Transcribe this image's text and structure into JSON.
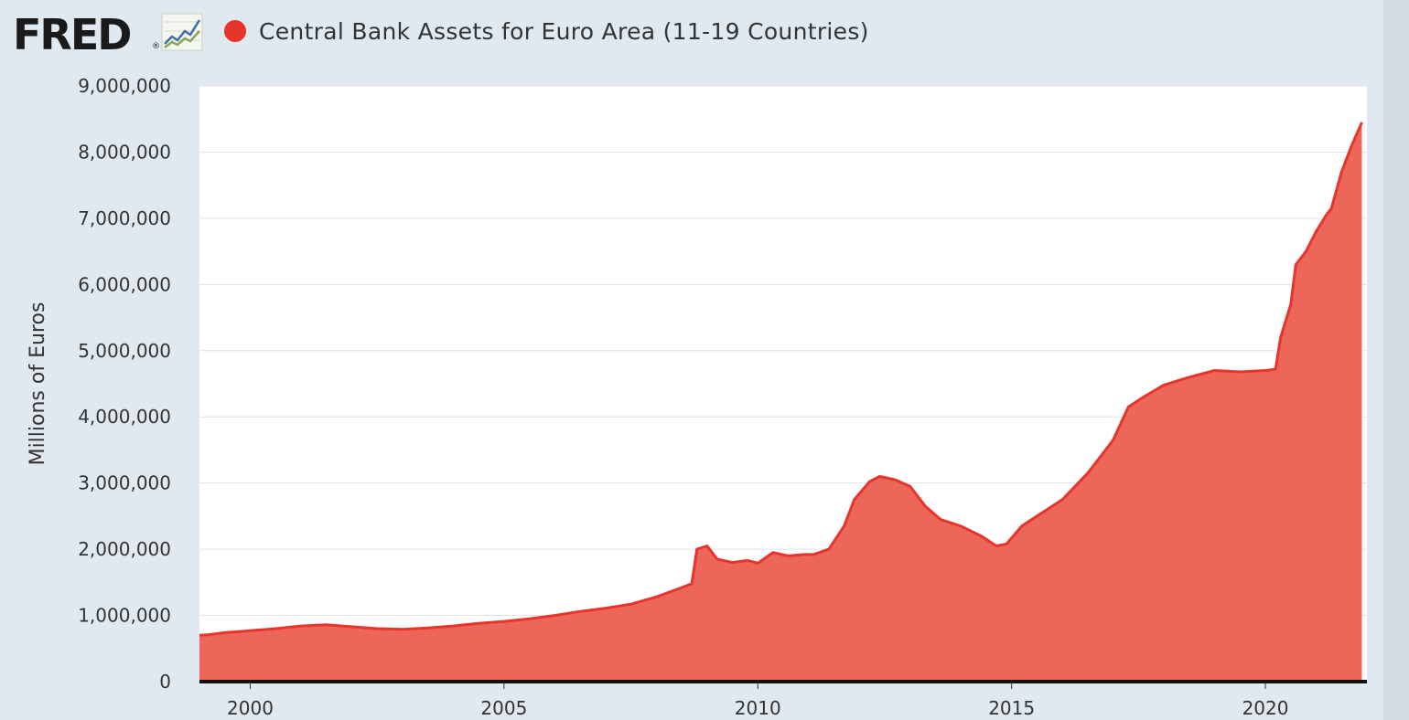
{
  "header": {
    "logo_text": "FRED",
    "logo_reg": "®",
    "logo_icon": "line-chart-icon",
    "title": "Central Bank Assets for Euro Area (11-19 Countries)"
  },
  "colors": {
    "series_line": "#e8342a",
    "series_fill": "#ec6659",
    "plot_background": "#ffffff",
    "page_background": "#e1e9f0",
    "grid": "#dfe3e8"
  },
  "chart_data": {
    "type": "area",
    "title": "Central Bank Assets for Euro Area (11-19 Countries)",
    "ylabel": "Millions of Euros",
    "xlabel": "",
    "xlim": [
      1999.0,
      2022.0
    ],
    "ylim": [
      0,
      9000000
    ],
    "grid": true,
    "legend": "none",
    "y_ticks": [
      0,
      1000000,
      2000000,
      3000000,
      4000000,
      5000000,
      6000000,
      7000000,
      8000000,
      9000000
    ],
    "y_tick_labels": [
      "0",
      "1,000,000",
      "2,000,000",
      "3,000,000",
      "4,000,000",
      "5,000,000",
      "6,000,000",
      "7,000,000",
      "8,000,000",
      "9,000,000"
    ],
    "x_ticks": [
      2000,
      2005,
      2010,
      2015,
      2020
    ],
    "x_tick_labels": [
      "2000",
      "2005",
      "2010",
      "2015",
      "2020"
    ],
    "series": [
      {
        "x": [
          1999.0,
          1999.2,
          1999.5,
          2000.0,
          2000.5,
          2001.0,
          2001.5,
          2002.0,
          2002.5,
          2003.0,
          2003.5,
          2004.0,
          2004.5,
          2005.0,
          2005.5,
          2006.0,
          2006.5,
          2007.0,
          2007.5,
          2008.0,
          2008.5,
          2008.7,
          2008.8,
          2009.0,
          2009.2,
          2009.5,
          2009.8,
          2010.0,
          2010.3,
          2010.6,
          2010.9,
          2011.1,
          2011.4,
          2011.7,
          2011.9,
          2012.2,
          2012.4,
          2012.7,
          2013.0,
          2013.3,
          2013.6,
          2014.0,
          2014.4,
          2014.7,
          2014.9,
          2015.2,
          2015.6,
          2016.0,
          2016.5,
          2017.0,
          2017.3,
          2017.6,
          2018.0,
          2018.5,
          2019.0,
          2019.5,
          2020.0,
          2020.2,
          2020.3,
          2020.5,
          2020.6,
          2020.8,
          2021.0,
          2021.2,
          2021.3,
          2021.5,
          2021.7,
          2021.9
        ],
        "y": [
          700000,
          710000,
          740000,
          770000,
          800000,
          840000,
          860000,
          830000,
          800000,
          790000,
          810000,
          840000,
          880000,
          910000,
          950000,
          1000000,
          1060000,
          1110000,
          1170000,
          1280000,
          1420000,
          1480000,
          2000000,
          2050000,
          1850000,
          1800000,
          1830000,
          1790000,
          1950000,
          1900000,
          1920000,
          1920000,
          2000000,
          2350000,
          2750000,
          3020000,
          3100000,
          3050000,
          2950000,
          2650000,
          2450000,
          2350000,
          2200000,
          2050000,
          2080000,
          2350000,
          2550000,
          2750000,
          3150000,
          3650000,
          4150000,
          4300000,
          4480000,
          4600000,
          4700000,
          4680000,
          4700000,
          4720000,
          5200000,
          5700000,
          6300000,
          6500000,
          6800000,
          7050000,
          7150000,
          7700000,
          8100000,
          8450000
        ]
      }
    ]
  }
}
